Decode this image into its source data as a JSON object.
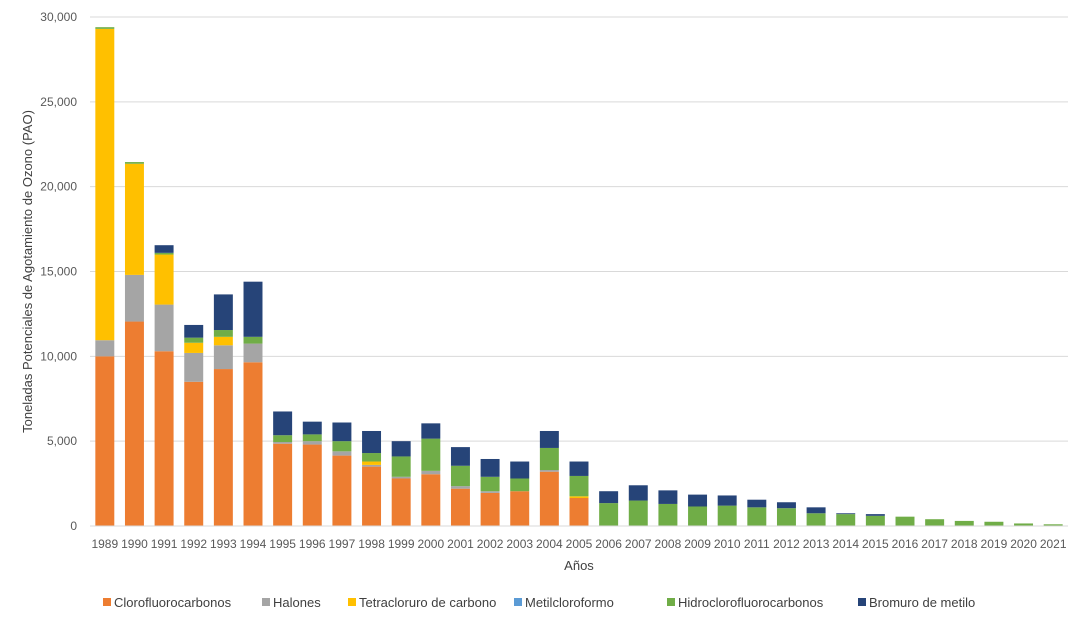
{
  "chart_data": {
    "type": "bar",
    "stacked": true,
    "title": "",
    "xlabel": "Años",
    "ylabel": "Toneladas Potenciales de Agotamiento de Ozono (PAO)",
    "ylim": [
      0,
      30000
    ],
    "yticks": [
      "0",
      "5,000",
      "10,000",
      "15,000",
      "20,000",
      "25,000",
      "30,000"
    ],
    "ytick_values": [
      0,
      5000,
      10000,
      15000,
      20000,
      25000,
      30000
    ],
    "grid": true,
    "legend_position": "bottom",
    "categories": [
      "1989",
      "1990",
      "1991",
      "1992",
      "1993",
      "1994",
      "1995",
      "1996",
      "1997",
      "1998",
      "1999",
      "2000",
      "2001",
      "2002",
      "2003",
      "2004",
      "2005",
      "2006",
      "2007",
      "2008",
      "2009",
      "2010",
      "2011",
      "2012",
      "2013",
      "2014",
      "2015",
      "2016",
      "2017",
      "2018",
      "2019",
      "2020",
      "2021"
    ],
    "series": [
      {
        "name": "Clorofluorocarbonos",
        "color": "#ED7D31",
        "values": [
          10000,
          12050,
          10300,
          8500,
          9250,
          9650,
          4850,
          4800,
          4150,
          3500,
          2800,
          3050,
          2200,
          1950,
          2050,
          3200,
          1650,
          0,
          0,
          0,
          0,
          0,
          0,
          0,
          0,
          0,
          0,
          0,
          0,
          0,
          0,
          0,
          0
        ]
      },
      {
        "name": "Halones",
        "color": "#A5A5A5",
        "values": [
          950,
          2750,
          2750,
          1700,
          1400,
          1100,
          100,
          200,
          250,
          100,
          100,
          200,
          150,
          100,
          0,
          100,
          0,
          0,
          0,
          0,
          0,
          0,
          0,
          0,
          0,
          0,
          0,
          0,
          0,
          0,
          0,
          0,
          0
        ]
      },
      {
        "name": "Tetracloruro de carbono",
        "color": "#FFC000",
        "values": [
          18350,
          6550,
          2950,
          600,
          500,
          0,
          0,
          0,
          0,
          200,
          0,
          0,
          0,
          0,
          0,
          0,
          100,
          0,
          0,
          0,
          0,
          0,
          0,
          0,
          0,
          0,
          0,
          0,
          0,
          0,
          0,
          0,
          0
        ]
      },
      {
        "name": "Metilcloroformo",
        "color": "#5B9BD5",
        "values": [
          0,
          0,
          0,
          0,
          0,
          0,
          0,
          0,
          0,
          0,
          0,
          0,
          0,
          0,
          0,
          0,
          0,
          0,
          0,
          0,
          0,
          0,
          0,
          0,
          0,
          0,
          0,
          0,
          0,
          0,
          0,
          0,
          0
        ]
      },
      {
        "name": "Hidroclorofluorocarbonos",
        "color": "#70AD47",
        "values": [
          100,
          100,
          100,
          300,
          400,
          400,
          400,
          400,
          600,
          500,
          1200,
          1900,
          1200,
          850,
          750,
          1300,
          1200,
          1350,
          1500,
          1300,
          1150,
          1200,
          1100,
          1050,
          750,
          700,
          600,
          550,
          400,
          300,
          250,
          150,
          100
        ]
      },
      {
        "name": "Bromuro de metilo",
        "color": "#264478",
        "values": [
          0,
          0,
          450,
          750,
          2100,
          3250,
          1400,
          750,
          1100,
          1300,
          900,
          900,
          1100,
          1050,
          1000,
          1000,
          850,
          700,
          900,
          800,
          700,
          600,
          450,
          350,
          350,
          50,
          100,
          0,
          0,
          0,
          0,
          0,
          0
        ]
      }
    ]
  }
}
